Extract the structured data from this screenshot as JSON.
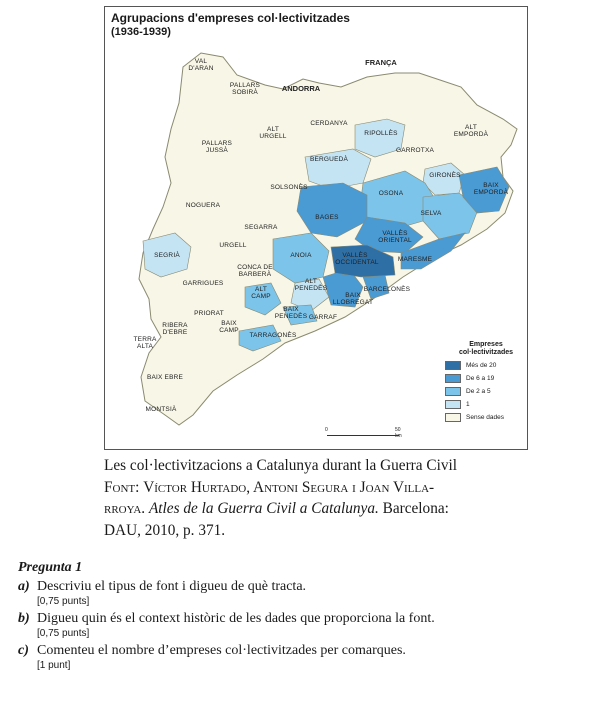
{
  "map": {
    "title": "Agrupacions d'empreses col·lectivitzades",
    "subtitle": "(1936-1939)",
    "labels": {
      "val_daran_1": "VAL",
      "val_daran_2": "D'ARAN",
      "franca": "FRANÇA",
      "pallars_sobira_1": "PALLARS",
      "pallars_sobira_2": "SOBIRÀ",
      "andorra": "ANDORRA",
      "cerdanya": "CERDANYA",
      "alt_urgell_1": "ALT",
      "alt_urgell_2": "URGELL",
      "ripolles": "RIPOLLÈS",
      "alt_emporda_1": "ALT",
      "alt_emporda_2": "EMPORDÀ",
      "pallars_jussa_1": "PALLARS",
      "pallars_jussa_2": "JUSSÀ",
      "garrotxa": "GARROTXA",
      "bergueda": "BERGUEDÀ",
      "girones": "GIRONÈS",
      "baix_emporda_1": "BAIX",
      "baix_emporda_2": "EMPORDÀ",
      "solsones": "SOLSONÈS",
      "osona": "OSONA",
      "noguera": "NOGUERA",
      "selva": "SELVA",
      "bages": "BAGES",
      "segarra": "SEGARRA",
      "valles_oriental_1": "VALLÈS",
      "valles_oriental_2": "ORIENTAL",
      "urgell": "URGELL",
      "segria": "SEGRIÀ",
      "anoia": "ANOIA",
      "valles_occidental_1": "VALLÈS",
      "valles_occidental_2": "OCCIDENTAL",
      "maresme": "MARESME",
      "conca_1": "CONCA DE",
      "conca_2": "BARBERÀ",
      "garrigues": "GARRIGUES",
      "alt_penedes_1": "ALT",
      "alt_penedes_2": "PENEDÈS",
      "barcelones": "BARCELONÈS",
      "alt_camp_1": "ALT",
      "alt_camp_2": "CAMP",
      "baix_llobregat_1": "BAIX",
      "baix_llobregat_2": "LLOBREGAT",
      "baix_penedes_1": "BAIX",
      "baix_penedes_2": "PENEDÈS",
      "garraf": "GARRAF",
      "priorat": "PRIORAT",
      "ribera_1": "RIBERA",
      "ribera_2": "D'EBRE",
      "baix_camp_1": "BAIX",
      "baix_camp_2": "CAMP",
      "terra_alta_1": "TERRA",
      "terra_alta_2": "ALTA",
      "tarragones": "TARRAGONÈS",
      "baix_ebre": "BAIX EBRE",
      "montsia": "MONTSIÀ"
    },
    "legend": {
      "title_1": "Empreses",
      "title_2": "col·lectivitzades",
      "items": [
        {
          "label": "Més de 20",
          "color": "#2e6fa6"
        },
        {
          "label": "De 6 a 19",
          "color": "#4a9ad4"
        },
        {
          "label": "De 2 a 5",
          "color": "#7cc4ea"
        },
        {
          "label": "1",
          "color": "#c4e4f4"
        },
        {
          "label": "Sense dades",
          "color": "#f8f6e6"
        }
      ]
    },
    "scale": {
      "zero": "0",
      "mid": "",
      "end": "50 km"
    },
    "colors": {
      "border": "#8a8a70",
      "outside": "#ffffff"
    }
  },
  "caption": {
    "line1": "Les col·lectivitzacions a Catalunya durant la Guerra Civil",
    "font_label": "Font:",
    "authors": "Víctor Hurtado, Antoni Segura i Joan Villa-",
    "authors_end": "rroya.",
    "book": "Atles de la Guerra Civil a Catalunya.",
    "publisher_1": "Barcelona:",
    "publisher_2": "DAU, 2010, p. 371."
  },
  "question": {
    "title": "Pregunta 1",
    "items": [
      {
        "letter": "a)",
        "text": "Descriviu el tipus de font i digueu de què tracta.",
        "points": "[0,75 punts]"
      },
      {
        "letter": "b)",
        "text": "Digueu quin és el context històric de les dades que proporciona la font.",
        "points": "[0,75 punts]"
      },
      {
        "letter": "c)",
        "text": "Comenteu el nombre d’empreses col·lectivitzades per comarques.",
        "points": "[1 punt]"
      }
    ]
  }
}
